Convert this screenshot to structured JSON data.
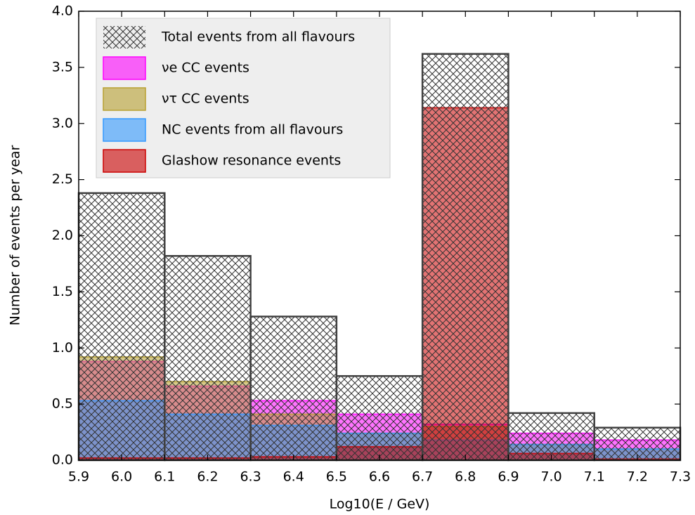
{
  "chart_data": {
    "type": "histogram",
    "xlabel": "Log10(E / GeV)",
    "ylabel": "Number of events per year",
    "bins": [
      5.9,
      6.1,
      6.3,
      6.5,
      6.7,
      6.9,
      7.1,
      7.3
    ],
    "series": [
      {
        "name": "Total events from all flavours",
        "color": "#404040",
        "values": [
          2.38,
          1.82,
          1.28,
          0.75,
          3.62,
          0.42,
          0.29
        ]
      },
      {
        "name": "νe CC events",
        "color": "#ff00ff",
        "values": [
          0.88,
          0.66,
          0.53,
          0.41,
          0.32,
          0.24,
          0.18
        ]
      },
      {
        "name": "ντ CC events",
        "color": "#b8a030",
        "values": [
          0.92,
          0.7,
          0.41,
          0.24,
          0.3,
          0.14,
          0.1
        ]
      },
      {
        "name": "NC events from all flavours",
        "color": "#3399ff",
        "values": [
          0.53,
          0.41,
          0.31,
          0.24,
          0.18,
          0.14,
          0.1
        ]
      },
      {
        "name": "Glashow resonance events",
        "color": "#cc0000",
        "values": [
          0.02,
          0.02,
          0.03,
          0.12,
          3.14,
          0.06,
          0.01
        ]
      }
    ],
    "xlim": [
      5.9,
      7.3
    ],
    "xticks": [
      5.9,
      {
        "value": 6,
        "label": "6.0"
      },
      6.1,
      6.2,
      6.3,
      6.4,
      6.5,
      6.6,
      6.7,
      6.8,
      6.9,
      {
        "value": 7,
        "label": "7.0"
      },
      7.1,
      7.2,
      7.3
    ],
    "ylim": [
      0,
      4
    ],
    "yticks": [
      {
        "value": 0,
        "label": "0.0"
      },
      0.5,
      {
        "value": 1,
        "label": "1.0"
      },
      1.5,
      {
        "value": 2,
        "label": "2.0"
      },
      2.5,
      {
        "value": 3,
        "label": "3.0"
      },
      3.5,
      {
        "value": 4,
        "label": "4.0"
      }
    ],
    "legend": "upper left"
  }
}
